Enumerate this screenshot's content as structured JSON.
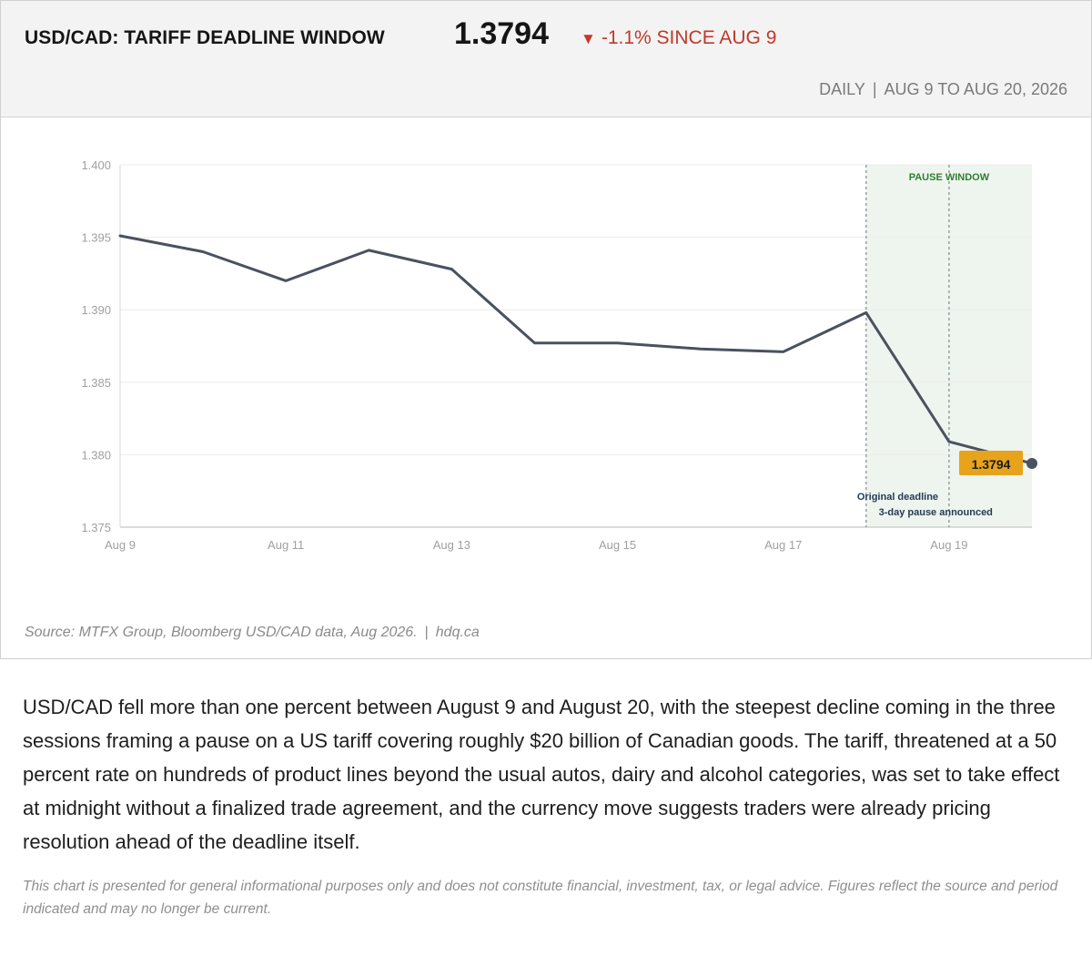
{
  "header": {
    "title": "USD/CAD: TARIFF DEADLINE WINDOW",
    "price": "1.3794",
    "change_arrow": "▼",
    "change": "-1.1% SINCE AUG 9",
    "frequency": "DAILY",
    "separator": "|",
    "range": "AUG 9 TO AUG 20, 2026",
    "colors": {
      "change": "#c0392b"
    }
  },
  "chart_data": {
    "type": "line",
    "x": [
      "Aug 9",
      "Aug 10",
      "Aug 11",
      "Aug 12",
      "Aug 13",
      "Aug 14",
      "Aug 15",
      "Aug 16",
      "Aug 17",
      "Aug 18",
      "Aug 19",
      "Aug 20"
    ],
    "series": [
      {
        "values": [
          1.3951,
          1.394,
          1.392,
          1.3941,
          1.3928,
          1.3877,
          1.3877,
          1.3873,
          1.3871,
          1.3898,
          1.3809,
          1.3794
        ]
      }
    ],
    "x_tick_labels": [
      "Aug 9",
      "Aug 11",
      "Aug 13",
      "Aug 15",
      "Aug 17",
      "Aug 19"
    ],
    "y_ticks": [
      "1.375",
      "1.380",
      "1.385",
      "1.390",
      "1.395",
      "1.400"
    ],
    "ylim": [
      1.375,
      1.4
    ],
    "grid": true,
    "line_color": "#4a5160",
    "shaded_region": {
      "from": "Aug 18",
      "to": "Aug 20",
      "label": "PAUSE WINDOW",
      "color": "#eef5ee",
      "label_color": "#2e7d32"
    },
    "annotations": [
      {
        "x": "Aug 18",
        "text": "Original deadline"
      },
      {
        "x": "Aug 19",
        "text": "3-day pause announced"
      }
    ],
    "last_value_label": "1.3794",
    "last_value_color": "#e8a31c"
  },
  "footer": {
    "source": "Source: MTFX Group, Bloomberg USD/CAD data, Aug 2026.",
    "separator": "|",
    "site": "hdq.ca"
  },
  "article": {
    "body": "USD/CAD fell more than one percent between August 9 and August 20, with the steepest decline coming in the three sessions framing a pause on a US tariff covering roughly $20 billion of Canadian goods. The tariff, threatened at a 50 percent rate on hundreds of product lines beyond the usual autos, dairy and alcohol categories, was set to take effect at midnight without a finalized trade agreement, and the currency move suggests traders were already pricing resolution ahead of the deadline itself.",
    "disclaimer": "This chart is presented for general informational purposes only and does not constitute financial, investment, tax, or legal advice. Figures reflect the source and period indicated and may no longer be current."
  }
}
